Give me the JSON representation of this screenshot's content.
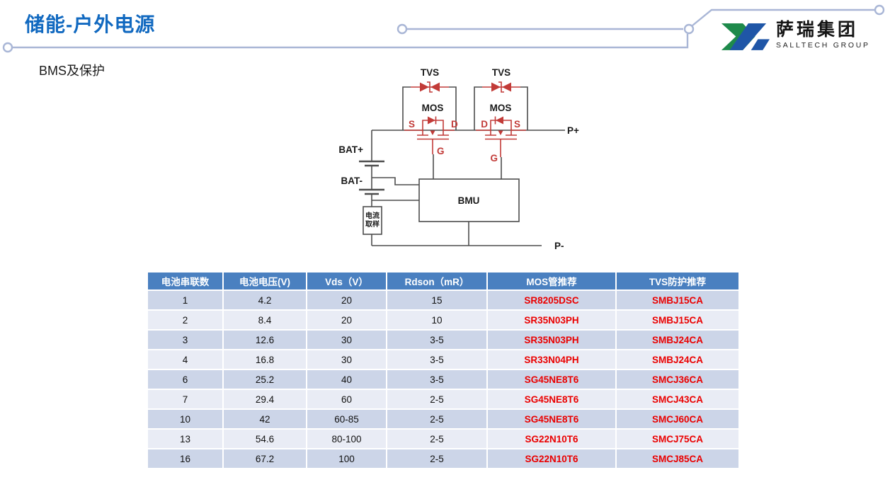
{
  "header": {
    "title": "储能-户外电源",
    "subtitle": "BMS及保护"
  },
  "logo": {
    "cn": "萨瑞集团",
    "en": "SALLTECH GROUP"
  },
  "diagram": {
    "tvs_label": "TVS",
    "mos_label": "MOS",
    "source_label": "S",
    "drain_label": "D",
    "gate_label": "G",
    "bat_plus_label": "BAT+",
    "bat_minus_label": "BAT-",
    "bmu_label": "BMU",
    "current_sample_line1": "电流",
    "current_sample_line2": "取样",
    "p_plus_label": "P+",
    "p_minus_label": "P-"
  },
  "table": {
    "columns": [
      "电池串联数",
      "电池电压(V)",
      "Vds（V）",
      "Rdson（mR）",
      "MOS管推荐",
      "TVS防护推荐"
    ],
    "rows": [
      [
        "1",
        "4.2",
        "20",
        "15",
        "SR8205DSC",
        "SMBJ15CA"
      ],
      [
        "2",
        "8.4",
        "20",
        "10",
        "SR35N03PH",
        "SMBJ15CA"
      ],
      [
        "3",
        "12.6",
        "30",
        "3-5",
        "SR35N03PH",
        "SMBJ24CA"
      ],
      [
        "4",
        "16.8",
        "30",
        "3-5",
        "SR33N04PH",
        "SMBJ24CA"
      ],
      [
        "6",
        "25.2",
        "40",
        "3-5",
        "SG45NE8T6",
        "SMCJ36CA"
      ],
      [
        "7",
        "29.4",
        "60",
        "2-5",
        "SG45NE8T6",
        "SMCJ43CA"
      ],
      [
        "10",
        "42",
        "60-85",
        "2-5",
        "SG45NE8T6",
        "SMCJ60CA"
      ],
      [
        "13",
        "54.6",
        "80-100",
        "2-5",
        "SG22N10T6",
        "SMCJ75CA"
      ],
      [
        "16",
        "67.2",
        "100",
        "2-5",
        "SG22N10T6",
        "SMCJ85CA"
      ]
    ]
  },
  "colors": {
    "accent_blue": "#1169c0",
    "header_blue": "#4a80c0",
    "row_dark": "#ccd5e8",
    "row_light": "#e9ecf5",
    "part_red": "#ea0000",
    "circuit_red": "#c23b38",
    "wire_gray": "#4d4d4d",
    "trace_gray": "#a9b6d6",
    "logo_green": "#1e8a4b",
    "logo_blue": "#1f56a7"
  }
}
